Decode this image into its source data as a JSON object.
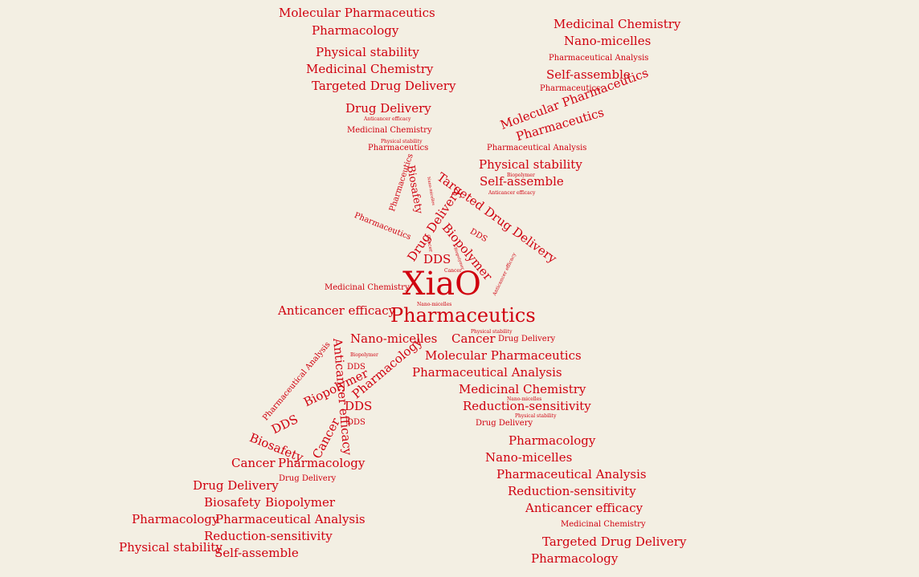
{
  "color": "#d0000f",
  "words": [
    {
      "text": "Molecular Pharmaceutics"
    },
    {
      "text": "Pharmacology"
    },
    {
      "text": "Physical stability"
    },
    {
      "text": "Medicinal Chemistry"
    },
    {
      "text": "Targeted Drug Delivery"
    },
    {
      "text": "Drug Delivery"
    },
    {
      "text": "Anticancer efficacy"
    },
    {
      "text": "Medicinal Chemistry"
    },
    {
      "text": "Physical stability"
    },
    {
      "text": "Pharmaceutics"
    },
    {
      "text": "Medicinal Chemistry"
    },
    {
      "text": "Nano-micelles"
    },
    {
      "text": "Pharmaceutical Analysis"
    },
    {
      "text": "Self-assemble"
    },
    {
      "text": "Pharmaceutics"
    },
    {
      "text": "Molecular Pharmaceutics"
    },
    {
      "text": "Pharmaceutics"
    },
    {
      "text": "Pharmaceutical Analysis"
    },
    {
      "text": "Physical stability"
    },
    {
      "text": "Biopolymer"
    },
    {
      "text": "Self-assemble"
    },
    {
      "text": "Anticancer efficacy"
    },
    {
      "text": "Pharmaceutics"
    },
    {
      "text": "Biosafety"
    },
    {
      "text": "Nano-micelles"
    },
    {
      "text": "Targeted Drug Delivery"
    },
    {
      "text": "Pharmaceutics"
    },
    {
      "text": "Drug Delivery"
    },
    {
      "text": "Biopolymer"
    },
    {
      "text": "DDS"
    },
    {
      "text": "Cancer"
    },
    {
      "text": "Biopolymer"
    },
    {
      "text": "DDS"
    },
    {
      "text": "Cancer"
    },
    {
      "text": "Anticancer efficacy"
    },
    {
      "text": "XiaO"
    },
    {
      "text": "Medicinal Chemistry"
    },
    {
      "text": "Nano-micelles"
    },
    {
      "text": "Pharmaceutics"
    },
    {
      "text": "Anticancer efficacy"
    },
    {
      "text": "Nano-micelles"
    },
    {
      "text": "Cancer"
    },
    {
      "text": "Physical stability"
    },
    {
      "text": "Drug Delivery"
    },
    {
      "text": "Molecular Pharmaceutics"
    },
    {
      "text": "Pharmaceutical Analysis"
    },
    {
      "text": "Medicinal Chemistry"
    },
    {
      "text": "Nano-micelles"
    },
    {
      "text": "Reduction-sensitivity"
    },
    {
      "text": "Physical stability"
    },
    {
      "text": "Drug Delivery"
    },
    {
      "text": "Pharmacology"
    },
    {
      "text": "Nano-micelles"
    },
    {
      "text": "Pharmaceutical Analysis"
    },
    {
      "text": "Reduction-sensitivity"
    },
    {
      "text": "Anticancer efficacy"
    },
    {
      "text": "Medicinal Chemistry"
    },
    {
      "text": "Targeted Drug Delivery"
    },
    {
      "text": "Pharmacology"
    },
    {
      "text": "Anticancer efficacy"
    },
    {
      "text": "Biopolymer"
    },
    {
      "text": "DDS"
    },
    {
      "text": "Pharmacology"
    },
    {
      "text": "Pharmaceutical Analysis"
    },
    {
      "text": "DDS"
    },
    {
      "text": "DDS"
    },
    {
      "text": "Biopolymer"
    },
    {
      "text": "DDS"
    },
    {
      "text": "Biosafety"
    },
    {
      "text": "Cancer"
    },
    {
      "text": "Cancer"
    },
    {
      "text": "Pharmacology"
    },
    {
      "text": "Drug Delivery"
    },
    {
      "text": "Drug Delivery"
    },
    {
      "text": "Biosafety"
    },
    {
      "text": "Biopolymer"
    },
    {
      "text": "Pharmacology"
    },
    {
      "text": "Pharmaceutical Analysis"
    },
    {
      "text": "Reduction-sensitivity"
    },
    {
      "text": "Physical stability"
    },
    {
      "text": "Self-assemble"
    }
  ]
}
